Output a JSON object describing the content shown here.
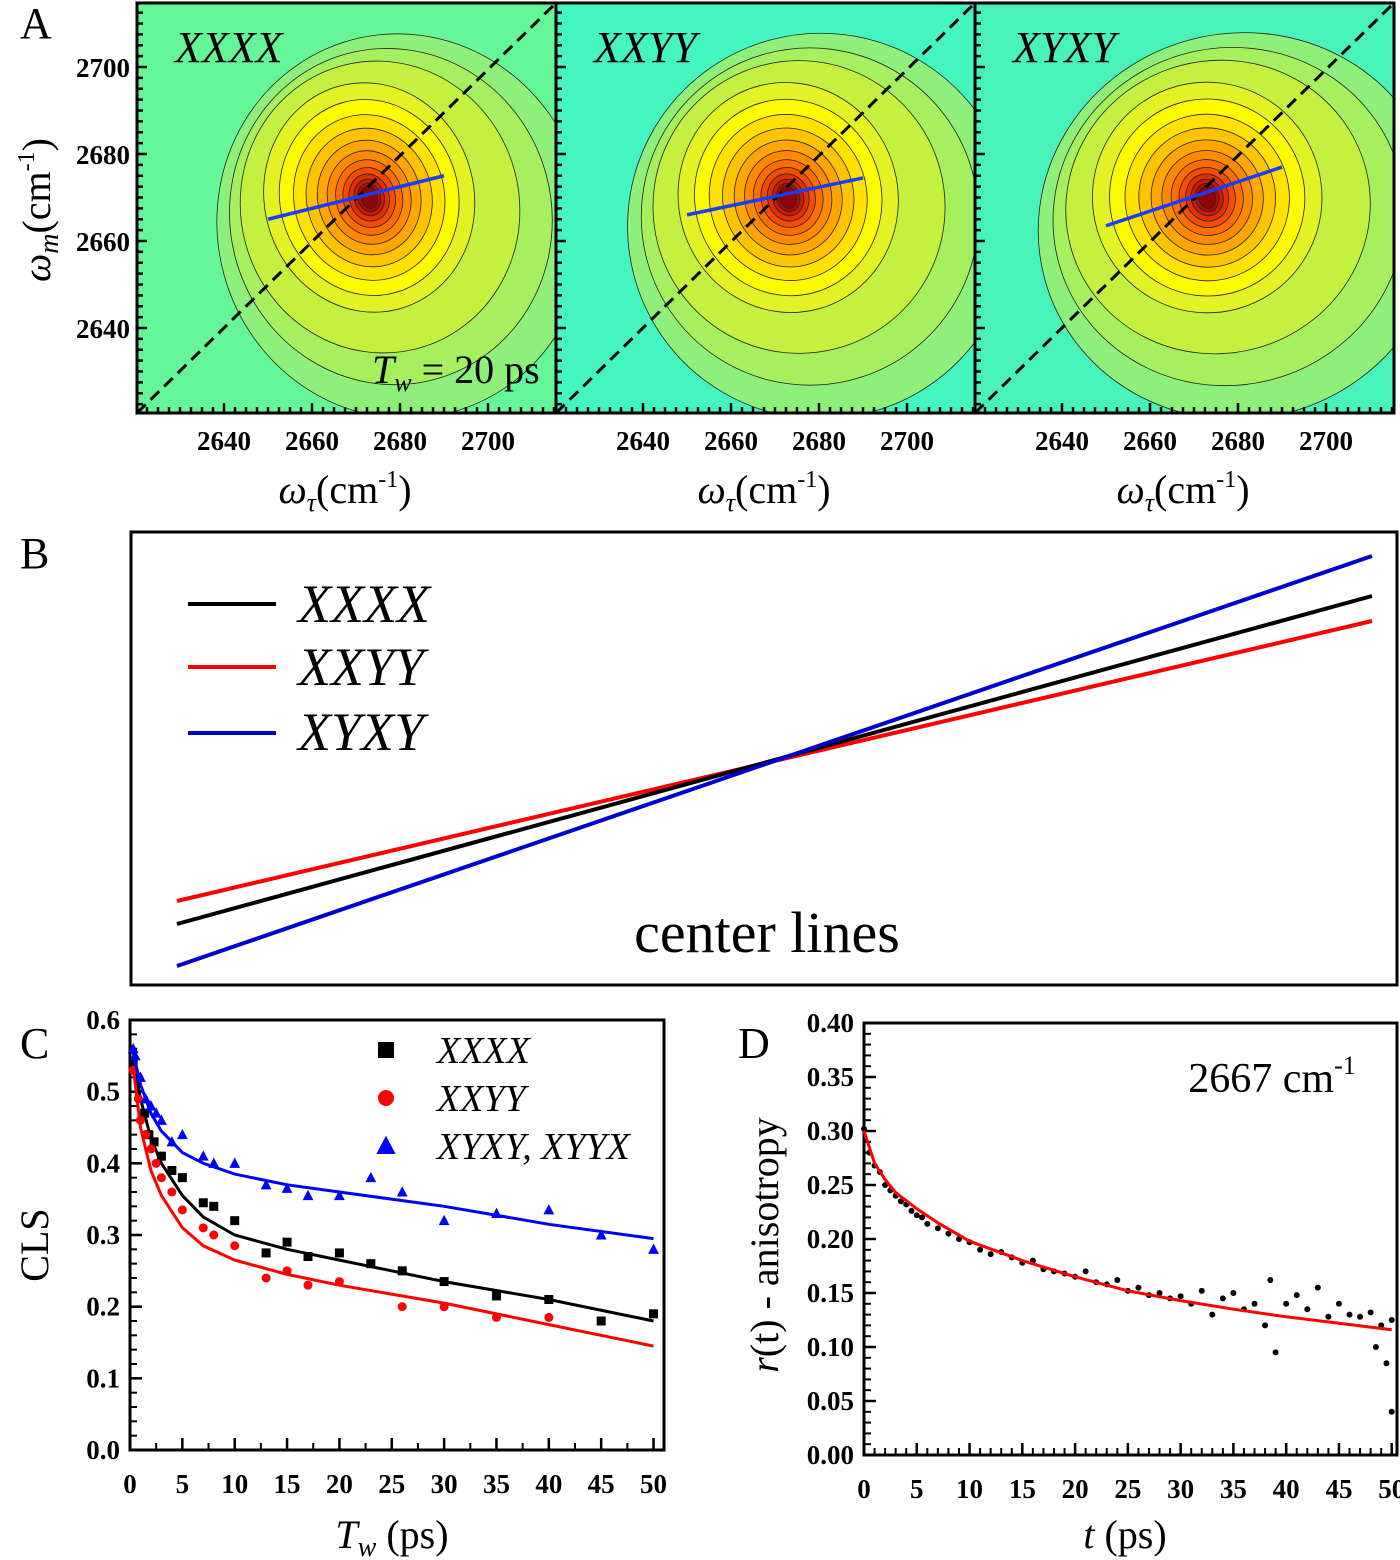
{
  "panel_labels": {
    "a": "A",
    "b": "B",
    "c": "C",
    "d": "D"
  },
  "panel_a": {
    "colors": {
      "contour_levels": [
        "#8ef07a",
        "#a6ef5e",
        "#c4f040",
        "#e2f225",
        "#fcfc00",
        "#ffe200",
        "#ffc400",
        "#ffa600",
        "#ff8a00",
        "#ff6c00",
        "#f44c00",
        "#e43000",
        "#cc1a08",
        "#b00c06",
        "#900404"
      ],
      "diagonal": "#000000",
      "center_line": "#1a3cff"
    },
    "xlabel": "ωτ(cm-1)",
    "xlabel_sym": "ω",
    "xlabel_sub": "τ",
    "xlabel_unit": "(cm",
    "xlabel_exp": "-1",
    "xlabel_close": ")",
    "ylabel_sym": "ω",
    "ylabel_sub": "m",
    "ylabel_unit": "(cm",
    "ylabel_exp": "-1",
    "ylabel_close": ")",
    "x_ticks": [
      "2640",
      "2660",
      "2680",
      "2700"
    ],
    "y_ticks": [
      "2700",
      "2680",
      "2660",
      "2640"
    ],
    "xlim": [
      2620,
      2715
    ],
    "ylim": [
      2621,
      2715
    ],
    "tw_label": {
      "sym": "T",
      "sub": "w",
      "text": " = 20 ps"
    },
    "plots": [
      {
        "title": "XXXX",
        "background": "#66f69a",
        "center_line": [
          [
            2650,
            2665
          ],
          [
            2690,
            2675
          ]
        ]
      },
      {
        "title": "XXYY",
        "background": "#45f5c0",
        "center_line": [
          [
            2650,
            2666
          ],
          [
            2690,
            2674.5
          ]
        ]
      },
      {
        "title": "XYXY",
        "background": "#48f2b8",
        "center_line": [
          [
            2650,
            2663.5
          ],
          [
            2690,
            2677
          ]
        ]
      }
    ]
  },
  "panel_b": {
    "annotation": "center lines",
    "legend": [
      {
        "name": "XXXX",
        "color": "#000000"
      },
      {
        "name": "XXYY",
        "color": "#ff0000"
      },
      {
        "name": "XYXY",
        "color": "#0000cc"
      }
    ]
  },
  "chart_data": [
    {
      "type": "scatter",
      "panel": "C",
      "xlabel": "Tw (ps)",
      "xlabel_sym": "T",
      "xlabel_sub": "w",
      "xlabel_unit": " (ps)",
      "ylabel": "CLS",
      "xlim": [
        0,
        51
      ],
      "ylim": [
        0,
        0.6
      ],
      "x_ticks": [
        "0",
        "5",
        "10",
        "15",
        "20",
        "25",
        "30",
        "35",
        "40",
        "45",
        "50"
      ],
      "y_ticks": [
        "0.0",
        "0.1",
        "0.2",
        "0.3",
        "0.4",
        "0.5",
        "0.6"
      ],
      "legend_position": "top-right",
      "series": [
        {
          "name": "XXXX",
          "marker": "square",
          "color": "#000000",
          "points": [
            [
              0.3,
              0.54
            ],
            [
              1.4,
              0.47
            ],
            [
              1.8,
              0.44
            ],
            [
              2.3,
              0.43
            ],
            [
              3,
              0.41
            ],
            [
              4,
              0.39
            ],
            [
              5,
              0.38
            ],
            [
              7,
              0.345
            ],
            [
              8,
              0.34
            ],
            [
              10,
              0.32
            ],
            [
              13,
              0.275
            ],
            [
              15,
              0.29
            ],
            [
              17,
              0.27
            ],
            [
              20,
              0.275
            ],
            [
              23,
              0.26
            ],
            [
              26,
              0.25
            ],
            [
              30,
              0.235
            ],
            [
              35,
              0.215
            ],
            [
              40,
              0.21
            ],
            [
              45,
              0.18
            ],
            [
              50,
              0.19
            ]
          ],
          "fit": [
            [
              0.3,
              0.545
            ],
            [
              1,
              0.49
            ],
            [
              2,
              0.435
            ],
            [
              3,
              0.4
            ],
            [
              5,
              0.355
            ],
            [
              7,
              0.325
            ],
            [
              10,
              0.3
            ],
            [
              15,
              0.28
            ],
            [
              20,
              0.265
            ],
            [
              30,
              0.235
            ],
            [
              40,
              0.21
            ],
            [
              50,
              0.18
            ]
          ]
        },
        {
          "name": "XXYY",
          "marker": "circle",
          "color": "#ff0000",
          "points": [
            [
              0.3,
              0.53
            ],
            [
              0.8,
              0.49
            ],
            [
              1,
              0.46
            ],
            [
              1.5,
              0.44
            ],
            [
              2,
              0.42
            ],
            [
              2.5,
              0.4
            ],
            [
              3,
              0.38
            ],
            [
              4,
              0.36
            ],
            [
              5,
              0.335
            ],
            [
              7,
              0.31
            ],
            [
              8,
              0.3
            ],
            [
              10,
              0.285
            ],
            [
              13,
              0.24
            ],
            [
              15,
              0.25
            ],
            [
              17,
              0.23
            ],
            [
              20,
              0.235
            ],
            [
              26,
              0.2
            ],
            [
              30,
              0.2
            ],
            [
              35,
              0.185
            ],
            [
              40,
              0.185
            ]
          ],
          "fit": [
            [
              0.3,
              0.535
            ],
            [
              1,
              0.45
            ],
            [
              2,
              0.39
            ],
            [
              3,
              0.355
            ],
            [
              5,
              0.31
            ],
            [
              7,
              0.285
            ],
            [
              10,
              0.265
            ],
            [
              15,
              0.245
            ],
            [
              20,
              0.23
            ],
            [
              30,
              0.205
            ],
            [
              40,
              0.175
            ],
            [
              50,
              0.145
            ]
          ]
        },
        {
          "name": "XYXY, XYYX",
          "marker": "triangle",
          "color": "#0000ff",
          "points": [
            [
              0.3,
              0.56
            ],
            [
              0.5,
              0.55
            ],
            [
              1,
              0.52
            ],
            [
              1.5,
              0.49
            ],
            [
              2,
              0.48
            ],
            [
              2.5,
              0.47
            ],
            [
              3,
              0.46
            ],
            [
              4,
              0.43
            ],
            [
              5,
              0.44
            ],
            [
              7,
              0.41
            ],
            [
              8,
              0.4
            ],
            [
              10,
              0.4
            ],
            [
              13,
              0.37
            ],
            [
              15,
              0.365
            ],
            [
              17,
              0.355
            ],
            [
              20,
              0.355
            ],
            [
              23,
              0.38
            ],
            [
              26,
              0.36
            ],
            [
              30,
              0.32
            ],
            [
              35,
              0.33
            ],
            [
              40,
              0.335
            ],
            [
              45,
              0.3
            ],
            [
              50,
              0.28
            ]
          ],
          "fit": [
            [
              0.3,
              0.555
            ],
            [
              1,
              0.51
            ],
            [
              2,
              0.47
            ],
            [
              3,
              0.445
            ],
            [
              5,
              0.415
            ],
            [
              7,
              0.4
            ],
            [
              10,
              0.385
            ],
            [
              15,
              0.37
            ],
            [
              20,
              0.36
            ],
            [
              30,
              0.34
            ],
            [
              40,
              0.315
            ],
            [
              50,
              0.295
            ]
          ]
        }
      ]
    },
    {
      "type": "scatter",
      "panel": "D",
      "annotation": {
        "text": "2667 cm",
        "exp": "-1"
      },
      "xlabel": "t (ps)",
      "xlabel_sym": "t",
      "xlabel_unit": " (ps)",
      "ylabel": "r(t) - anisotropy",
      "ylabel_sym": "r",
      "ylabel_arg": "(t)",
      "ylabel_rest": " - anisotropy",
      "xlim": [
        0,
        50.5
      ],
      "ylim": [
        0,
        0.4
      ],
      "x_ticks": [
        "0",
        "5",
        "10",
        "15",
        "20",
        "25",
        "30",
        "35",
        "40",
        "45",
        "50"
      ],
      "y_ticks": [
        "0.00",
        "0.05",
        "0.10",
        "0.15",
        "0.20",
        "0.25",
        "0.30",
        "0.35",
        "0.40"
      ],
      "series": [
        {
          "marker": "dot",
          "color": "#000000",
          "points": [
            [
              0,
              0.302
            ],
            [
              0.5,
              0.28
            ],
            [
              1,
              0.268
            ],
            [
              1.5,
              0.262
            ],
            [
              2,
              0.25
            ],
            [
              2.5,
              0.245
            ],
            [
              3,
              0.24
            ],
            [
              3.5,
              0.235
            ],
            [
              4,
              0.232
            ],
            [
              4.5,
              0.226
            ],
            [
              5,
              0.222
            ],
            [
              5.5,
              0.22
            ],
            [
              6,
              0.214
            ],
            [
              7,
              0.21
            ],
            [
              8,
              0.205
            ],
            [
              9,
              0.2
            ],
            [
              10,
              0.197
            ],
            [
              11,
              0.19
            ],
            [
              12,
              0.186
            ],
            [
              13,
              0.188
            ],
            [
              14,
              0.183
            ],
            [
              15,
              0.178
            ],
            [
              16,
              0.18
            ],
            [
              17,
              0.172
            ],
            [
              18,
              0.17
            ],
            [
              19,
              0.168
            ],
            [
              20,
              0.165
            ],
            [
              21,
              0.17
            ],
            [
              22,
              0.16
            ],
            [
              23,
              0.158
            ],
            [
              24,
              0.162
            ],
            [
              25,
              0.152
            ],
            [
              26,
              0.155
            ],
            [
              27,
              0.148
            ],
            [
              28,
              0.15
            ],
            [
              29,
              0.145
            ],
            [
              30,
              0.147
            ],
            [
              31,
              0.14
            ],
            [
              32,
              0.152
            ],
            [
              33,
              0.13
            ],
            [
              34,
              0.145
            ],
            [
              35,
              0.15
            ],
            [
              36,
              0.135
            ],
            [
              37,
              0.14
            ],
            [
              38,
              0.12
            ],
            [
              38.5,
              0.162
            ],
            [
              39,
              0.095
            ],
            [
              40,
              0.14
            ],
            [
              41,
              0.148
            ],
            [
              42,
              0.135
            ],
            [
              43,
              0.155
            ],
            [
              44,
              0.128
            ],
            [
              45,
              0.14
            ],
            [
              46,
              0.13
            ],
            [
              47,
              0.128
            ],
            [
              48,
              0.132
            ],
            [
              48.5,
              0.1
            ],
            [
              49,
              0.12
            ],
            [
              49.5,
              0.085
            ],
            [
              50,
              0.125
            ],
            [
              50,
              0.04
            ]
          ]
        },
        {
          "marker": "line",
          "color": "#ff0000",
          "fit": [
            [
              0,
              0.3
            ],
            [
              1,
              0.27
            ],
            [
              2,
              0.255
            ],
            [
              3,
              0.243
            ],
            [
              5,
              0.228
            ],
            [
              7,
              0.215
            ],
            [
              10,
              0.198
            ],
            [
              15,
              0.18
            ],
            [
              20,
              0.165
            ],
            [
              25,
              0.152
            ],
            [
              30,
              0.143
            ],
            [
              35,
              0.135
            ],
            [
              40,
              0.128
            ],
            [
              45,
              0.122
            ],
            [
              50,
              0.116
            ]
          ]
        }
      ]
    }
  ]
}
